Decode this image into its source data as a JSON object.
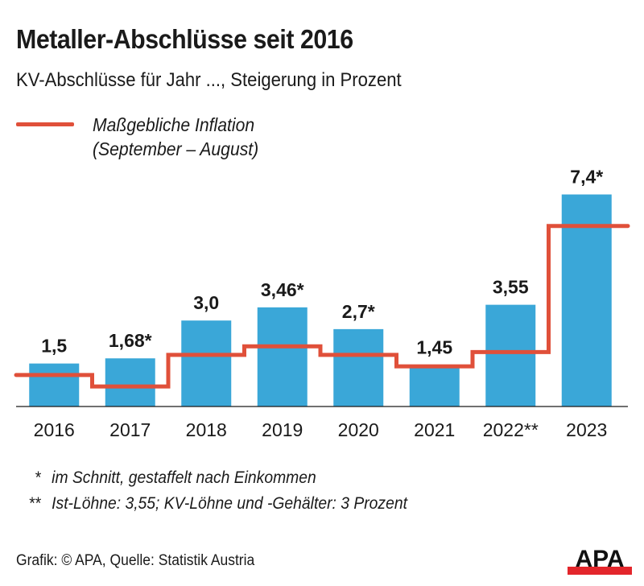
{
  "header": {
    "title": "Metaller-Abschlüsse seit 2016",
    "subtitle": "KV-Abschlüsse für Jahr ..., Steigerung in Prozent"
  },
  "legend": {
    "line1": "Maßgebliche Inflation",
    "line2": "(September – August)",
    "color": "#e0503a"
  },
  "chart_data": {
    "type": "bar",
    "title": "Metaller-Abschlüsse seit 2016",
    "subtitle": "KV-Abschlüsse für Jahr ..., Steigerung in Prozent",
    "xlabel": "",
    "ylabel": "",
    "ylim": [
      0,
      7.6
    ],
    "grid": false,
    "legend_position": "top-left",
    "categories": [
      "2016",
      "2017",
      "2018",
      "2019",
      "2020",
      "2021",
      "2022**",
      "2023"
    ],
    "series": [
      {
        "name": "KV-Abschluss",
        "type": "bar",
        "color": "#3aa7d8",
        "values": [
          1.5,
          1.68,
          3.0,
          3.46,
          2.7,
          1.45,
          3.55,
          7.4
        ],
        "labels": [
          "1,5",
          "1,68*",
          "3,0",
          "3,46*",
          "2,7*",
          "1,45",
          "3,55",
          "7,4*"
        ]
      },
      {
        "name": "Maßgebliche Inflation (September – August)",
        "type": "step-line",
        "color": "#e0503a",
        "values": [
          1.1,
          0.7,
          1.8,
          2.1,
          1.8,
          1.4,
          1.9,
          6.3
        ]
      }
    ]
  },
  "notes": [
    {
      "mark": "*",
      "text": "im Schnitt, gestaffelt nach Einkommen"
    },
    {
      "mark": "**",
      "text": "Ist-Löhne: 3,55; KV-Löhne und -Gehälter: 3 Prozent"
    }
  ],
  "footer": {
    "source": "Grafik: © APA, Quelle: Statistik Austria",
    "logo_text": "APA"
  }
}
